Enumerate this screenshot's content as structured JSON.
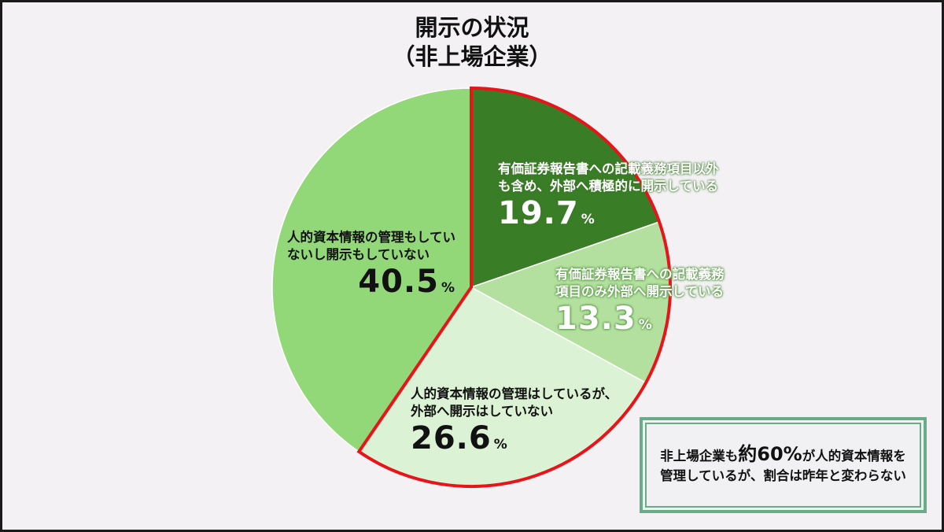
{
  "title": {
    "line1": "開示の状況",
    "line2": "（非上場企業）"
  },
  "chart_data": {
    "type": "pie",
    "title": "開示の状況（非上場企業）",
    "start_angle": "12 o'clock, clockwise",
    "slices": [
      {
        "label": "有価証券報告書への記載義務項目以外も含め、外部へ積極的に開示している",
        "value": 19.7,
        "color": "#3a7d27",
        "highlighted": true
      },
      {
        "label": "有価証券報告書への記載義務項目のみ外部へ開示している",
        "value": 13.3,
        "color": "#b4e09f",
        "highlighted": true
      },
      {
        "label": "人的資本情報の管理はしているが、外部へ開示はしていない",
        "value": 26.6,
        "color": "#dcf2d4",
        "highlighted": true
      },
      {
        "label": "人的資本情報の管理もしていないし開示もしていない",
        "value": 40.5,
        "color": "#92d878",
        "highlighted": false
      }
    ],
    "highlight_outline_color": "#e8141a",
    "unit": "%"
  },
  "labels": [
    {
      "line1": "有価証券報告書への記載義務項目以外",
      "line2": "も含め、外部へ積極的に開示している",
      "value": "19.7",
      "unit": "%"
    },
    {
      "line1": "有価証券報告書への記載義務",
      "line2": "項目のみ外部へ開示している",
      "value": "13.3",
      "unit": "%"
    },
    {
      "line1": "人的資本情報の管理はしているが、",
      "line2": "外部へ開示はしていない",
      "value": "26.6",
      "unit": "%"
    },
    {
      "line1": "人的資本情報の管理もしてい",
      "line2": "ないし開示もしていない",
      "value": "40.5",
      "unit": "%"
    }
  ],
  "note": {
    "line1_pre": "非上場企業も",
    "line1_em": "約60%",
    "line1_post": "が人的資本情報を",
    "line2": "管理しているが、割合は昨年と変わらない"
  }
}
